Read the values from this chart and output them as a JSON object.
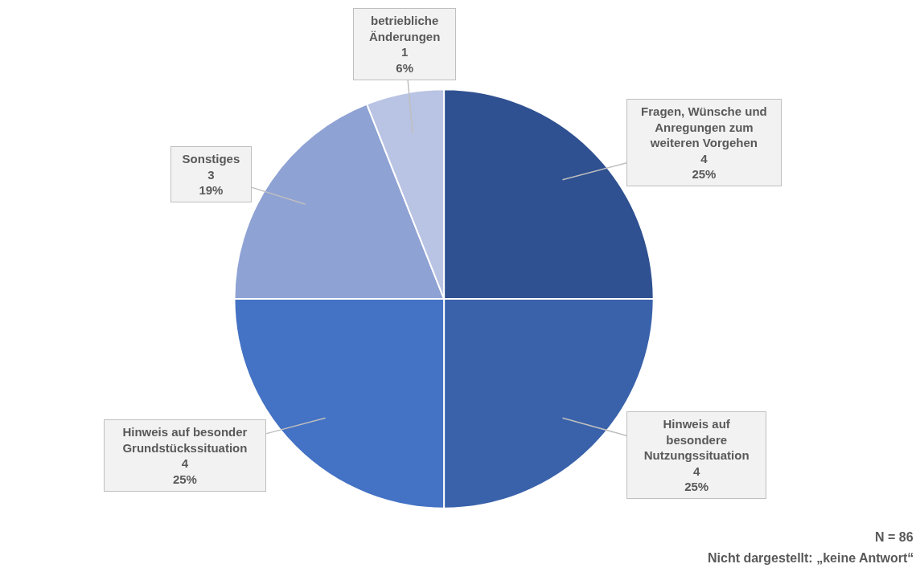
{
  "chart_data": {
    "type": "pie",
    "categories": [
      "Fragen, Wünsche und Anregungen zum weiteren Vorgehen",
      "Hinweis auf besondere Nutzungssituation",
      "Hinweis auf besonder Grundstückssituation",
      "Sonstiges",
      "betriebliche Änderungen"
    ],
    "values": [
      25,
      25,
      25,
      19,
      6
    ],
    "value_labels": [
      "4\n25%",
      "4\n25%",
      "4\n25%",
      "3\n19%",
      "1\n6%"
    ],
    "colors": [
      "#2f5191",
      "#3a62ab",
      "#4472c4",
      "#8fa2d4",
      "#b9c3e3"
    ],
    "data_labels": true,
    "legend": false,
    "annotations": [
      "N = 86",
      "Nicht dargestellt: „keine Antwort“"
    ]
  }
}
